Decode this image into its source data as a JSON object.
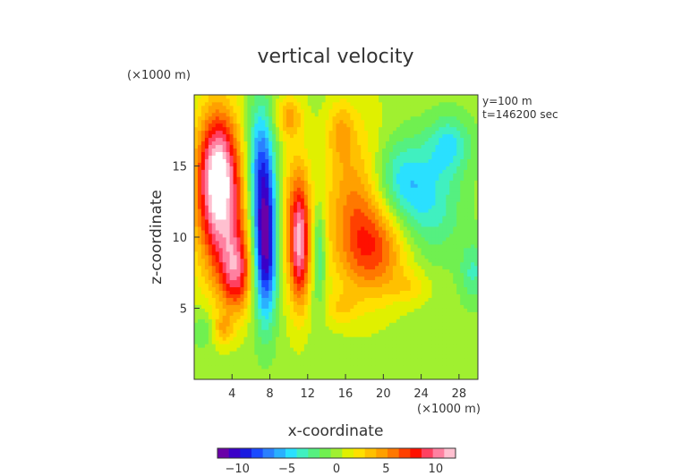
{
  "chart_data": {
    "type": "heatmap",
    "title": "vertical velocity",
    "xlabel": "x-coordinate",
    "ylabel": "z-coordinate",
    "x_unit": "(×1000 m)",
    "z_unit": "(×1000 m)",
    "info_line1": "y=100 m",
    "info_line2": "t=146200 sec",
    "xlim": [
      0,
      30
    ],
    "ylim": [
      0,
      20
    ],
    "x_ticks": [
      4,
      8,
      12,
      16,
      20,
      24,
      28
    ],
    "y_ticks": [
      5,
      10,
      15
    ],
    "colorbar": {
      "min": -12,
      "max": 12,
      "ticks": [
        -10,
        -5,
        0,
        5,
        10
      ],
      "colors": [
        "#6a00a8",
        "#3b00c8",
        "#1a1ae0",
        "#1a4aff",
        "#2a80ff",
        "#2ab0ff",
        "#2ae0ff",
        "#40f0c0",
        "#55f080",
        "#70f050",
        "#a0f030",
        "#e0f000",
        "#ffe000",
        "#ffc000",
        "#ffa000",
        "#ff7800",
        "#ff4000",
        "#ff1000",
        "#ff4060",
        "#ff80a0",
        "#ffc0d0"
      ]
    },
    "features": [
      {
        "x": 2.5,
        "z": 14.8,
        "value": 11,
        "sx": 1.6,
        "sz": 3.2
      },
      {
        "x": 3.0,
        "z": 10.5,
        "value": 6,
        "sx": 2.0,
        "sz": 3.5
      },
      {
        "x": 4.5,
        "z": 7.5,
        "value": 7,
        "sx": 1.2,
        "sz": 2.0
      },
      {
        "x": 7.5,
        "z": 9.5,
        "value": -12,
        "sx": 0.9,
        "sz": 3.6
      },
      {
        "x": 7.0,
        "z": 15.5,
        "value": -6,
        "sx": 1.0,
        "sz": 3.0
      },
      {
        "x": 10.5,
        "z": 11.0,
        "value": 4,
        "sx": 1.2,
        "sz": 4.0
      },
      {
        "x": 11.2,
        "z": 9.5,
        "value": 8,
        "sx": 0.7,
        "sz": 3.0
      },
      {
        "x": 13.2,
        "z": 9.0,
        "value": -4,
        "sx": 0.5,
        "sz": 2.5
      },
      {
        "x": 17.5,
        "z": 12.0,
        "value": 6,
        "sx": 2.6,
        "sz": 4.0
      },
      {
        "x": 19.5,
        "z": 9.0,
        "value": 4,
        "sx": 2.5,
        "sz": 2.2
      },
      {
        "x": 21.5,
        "z": 14.0,
        "value": -5,
        "sx": 2.5,
        "sz": 2.2
      },
      {
        "x": 27.0,
        "z": 16.5,
        "value": -4,
        "sx": 1.6,
        "sz": 1.5
      },
      {
        "x": 25.0,
        "z": 12.0,
        "value": -3,
        "sx": 2.5,
        "sz": 2.5
      },
      {
        "x": 29.5,
        "z": 7.5,
        "value": -3,
        "sx": 1.0,
        "sz": 1.5
      },
      {
        "x": 10.0,
        "z": 18.5,
        "value": 4,
        "sx": 1.0,
        "sz": 1.0
      },
      {
        "x": 15.5,
        "z": 17.5,
        "value": 3,
        "sx": 1.0,
        "sz": 1.5
      },
      {
        "x": 3.0,
        "z": 3.5,
        "value": 3,
        "sx": 0.8,
        "sz": 0.8
      },
      {
        "x": 1.0,
        "z": 3.5,
        "value": -2,
        "sx": 0.8,
        "sz": 1.0
      },
      {
        "x": 15.5,
        "z": 5.0,
        "value": 2,
        "sx": 1.2,
        "sz": 0.8
      },
      {
        "x": 23.0,
        "z": 6.5,
        "value": 2,
        "sx": 1.5,
        "sz": 0.8
      }
    ]
  }
}
